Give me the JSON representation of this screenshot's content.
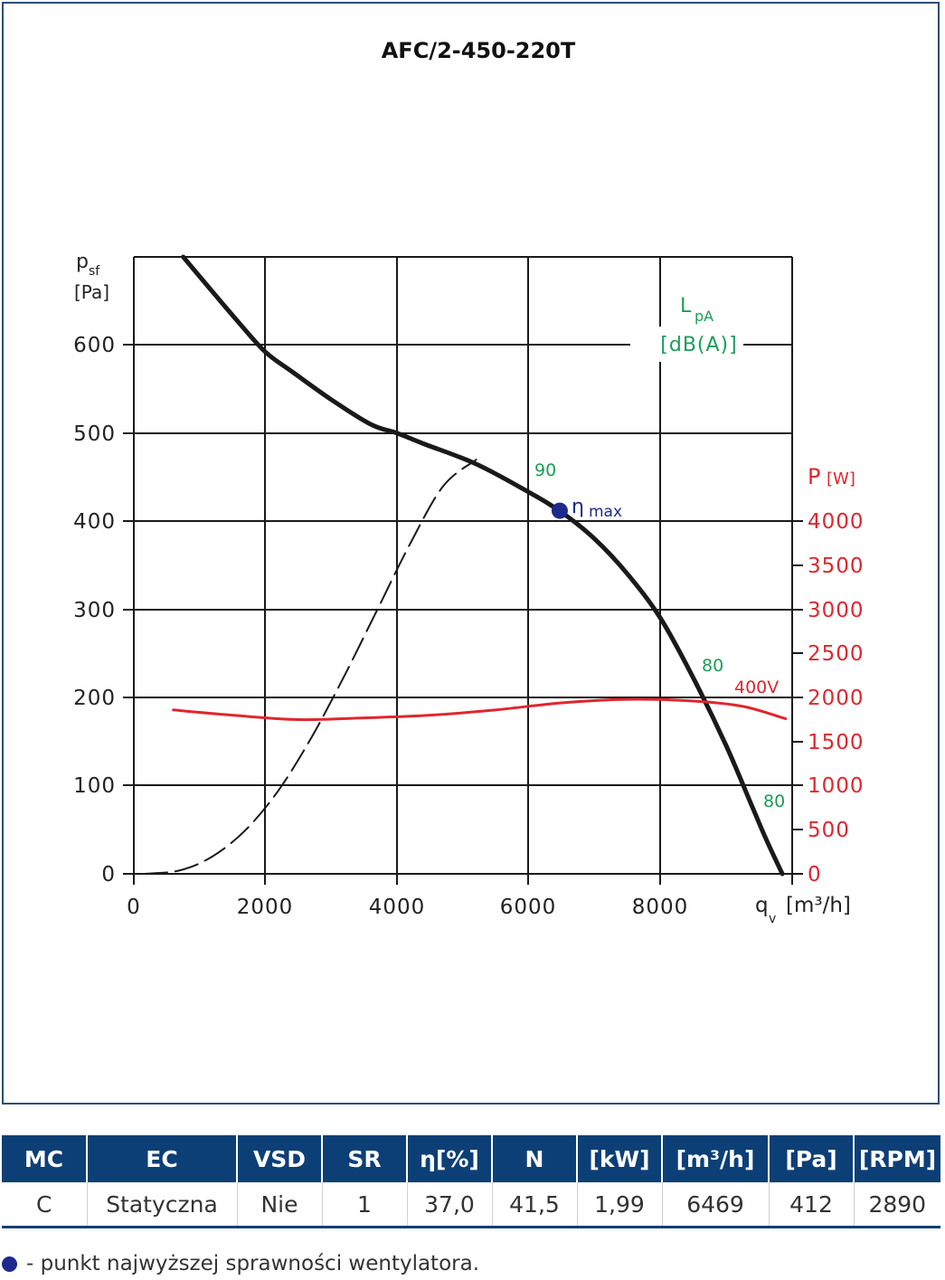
{
  "chart_data": {
    "type": "line",
    "title": "AFC/2-450-220T",
    "x_axis": {
      "label": "q",
      "label_sub": "v",
      "unit": "[m³/h]",
      "range": [
        0,
        10000
      ],
      "ticks": [
        "0",
        "2000",
        "4000",
        "6000",
        "8000"
      ]
    },
    "y_axis": {
      "label": "p",
      "label_sub": "sf",
      "unit": "[Pa]",
      "range": [
        0,
        700
      ],
      "ticks": [
        "0",
        "100",
        "200",
        "300",
        "400",
        "500",
        "600"
      ]
    },
    "y2_axis": {
      "label": "P",
      "unit": "[W]",
      "range": [
        0,
        4000
      ],
      "color": "#e0262e",
      "ticks": [
        "0",
        "500",
        "1000",
        "1500",
        "2000",
        "2500",
        "3000",
        "3500",
        "4000"
      ]
    },
    "grid": true,
    "series": [
      {
        "role": "pressure",
        "axis": "y",
        "color": "#1a1a1a",
        "x": [
          750,
          1200,
          1600,
          2000,
          2400,
          3000,
          3600,
          4000,
          4400,
          5200,
          6000,
          6500,
          7000,
          7500,
          8000,
          8500,
          9000,
          9400,
          9600,
          9850
        ],
        "y": [
          700,
          660,
          625,
          592,
          570,
          538,
          510,
          500,
          488,
          465,
          433,
          410,
          380,
          340,
          290,
          222,
          145,
          75,
          40,
          0
        ]
      },
      {
        "role": "power",
        "axis": "y2",
        "color": "#e0262e",
        "name": "400V",
        "x": [
          600,
          1500,
          2500,
          3500,
          4500,
          5500,
          6500,
          7500,
          8500,
          9250,
          9900
        ],
        "y": [
          1860,
          1800,
          1750,
          1770,
          1800,
          1860,
          1940,
          1980,
          1960,
          1900,
          1760
        ]
      },
      {
        "role": "system-curve",
        "axis": "y",
        "style": "dashed",
        "color": "#1a1a1a",
        "x": [
          150,
          700,
          1200,
          1700,
          2200,
          2700,
          3200,
          3700,
          4200,
          4700,
          5200
        ],
        "y": [
          0,
          4,
          20,
          50,
          95,
          155,
          225,
          300,
          375,
          440,
          470
        ]
      }
    ],
    "annotations": [
      {
        "text": "90",
        "color": "#1a9e57"
      },
      {
        "text": "80",
        "color": "#1a9e57"
      },
      {
        "text": "80",
        "color": "#1a9e57"
      },
      {
        "text": "L",
        "sub": "pA",
        "unit": "[dB(A)]",
        "color": "#1a9e57"
      }
    ],
    "eta_max": {
      "x": 6469,
      "y": 412,
      "label": "η",
      "label_sub": "max",
      "color": "#1d2a8c"
    }
  },
  "table": {
    "headers": [
      "MC",
      "EC",
      "VSD",
      "SR",
      "η[%]",
      "N",
      "[kW]",
      "[m³/h]",
      "[Pa]",
      "[RPM]"
    ],
    "row": [
      "C",
      "Statyczna",
      "Nie",
      "1",
      "37,0",
      "41,5",
      "1,99",
      "6469",
      "412",
      "2890"
    ]
  },
  "legend_note": "- punkt najwyższej sprawności wentylatora."
}
